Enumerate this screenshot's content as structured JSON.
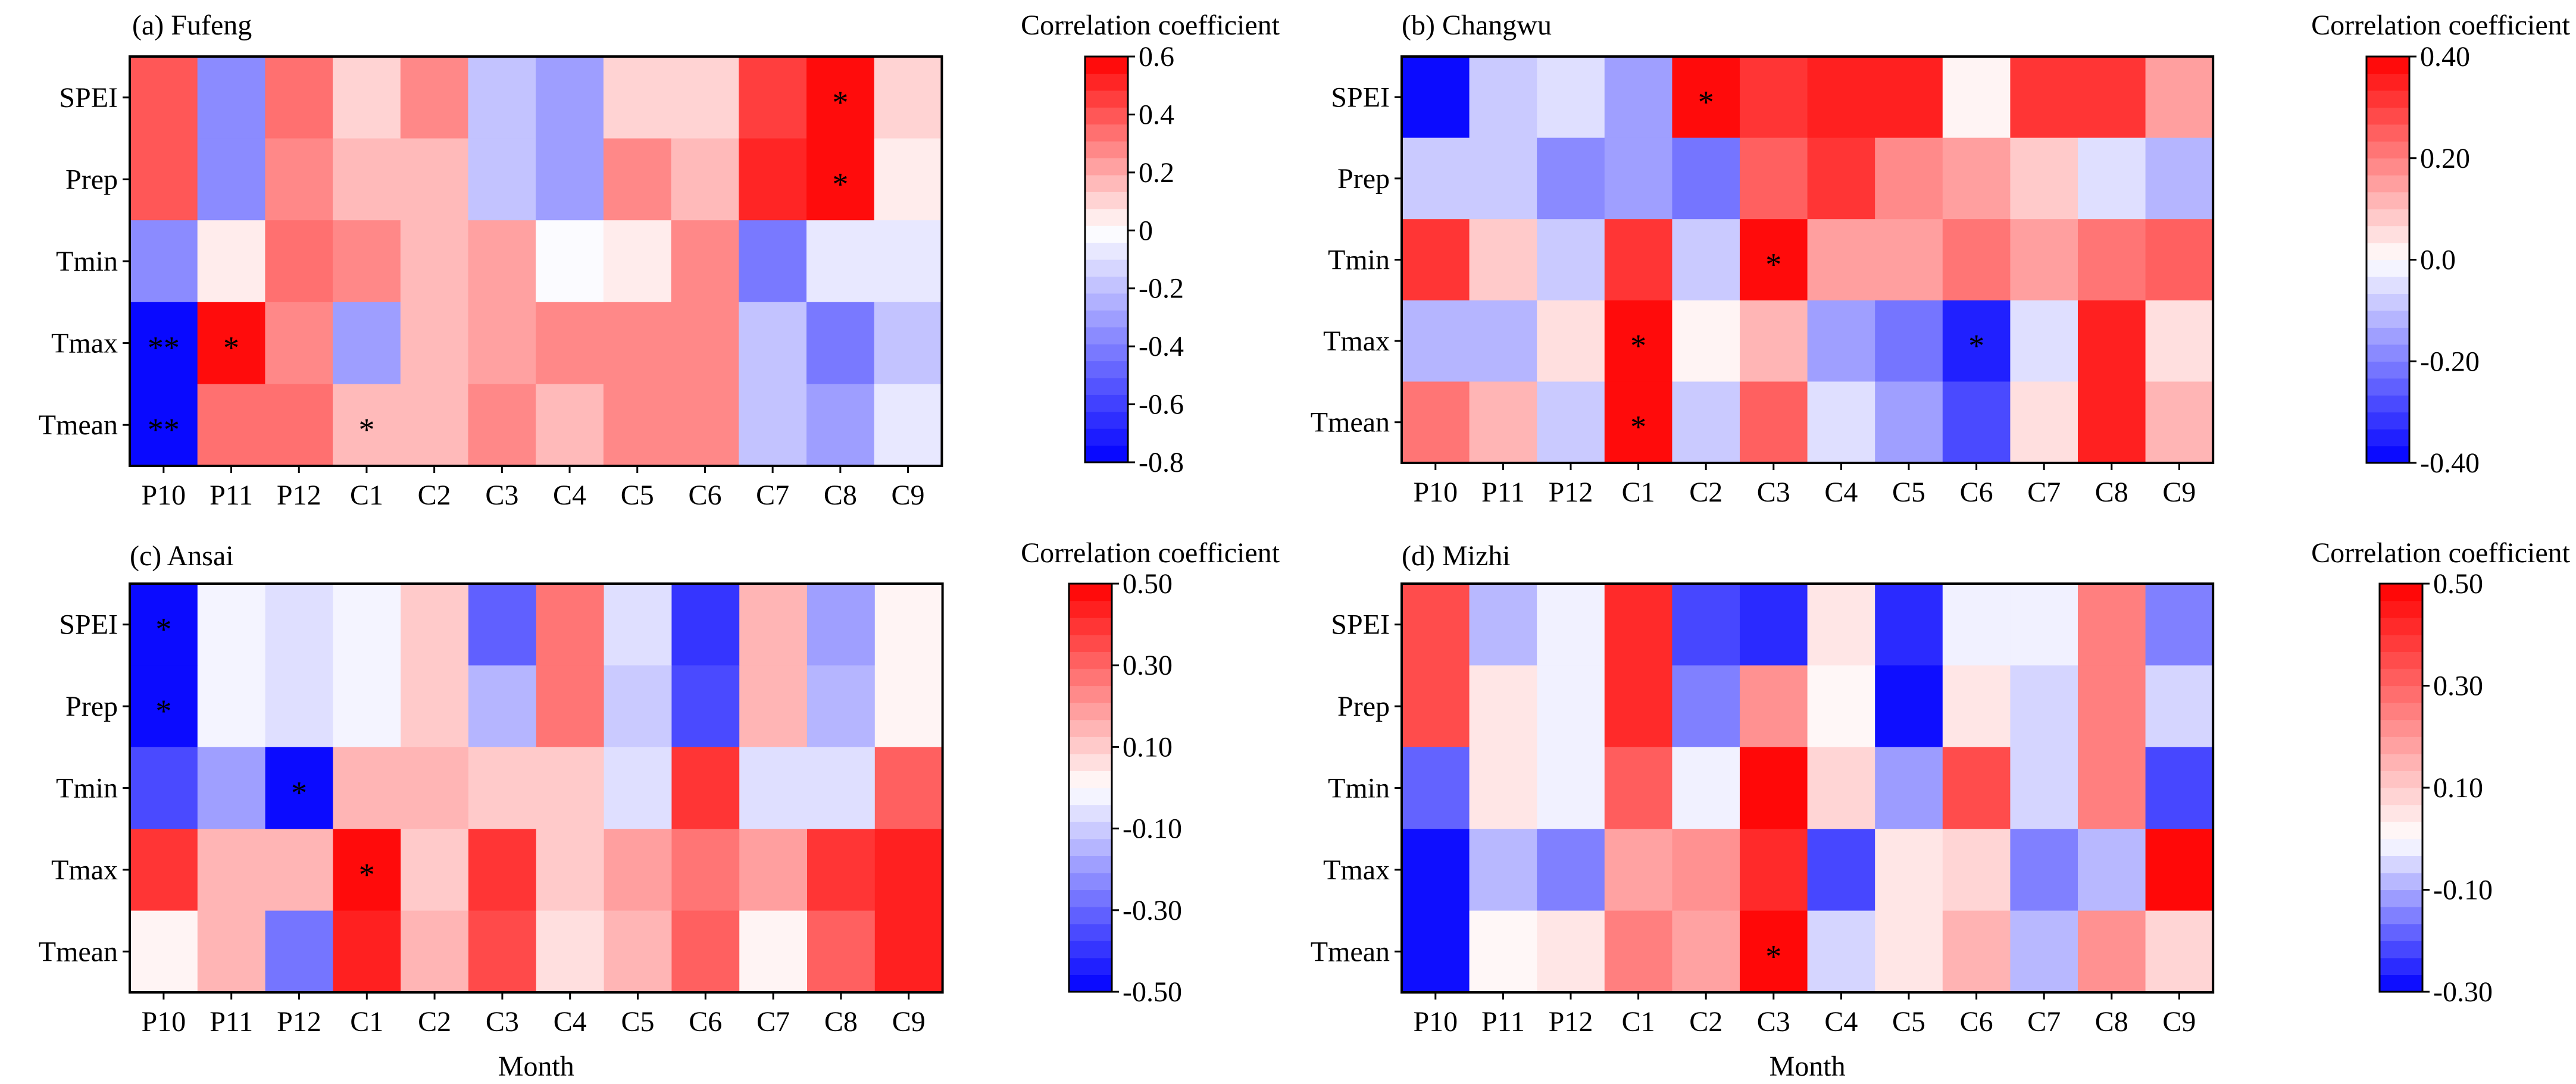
{
  "figure": {
    "x_axis_title": "Month"
  },
  "chart_data": [
    {
      "type": "heatmap",
      "panel": "a",
      "title": "(a) Fufeng",
      "colorbar_label": "Correlation coefficient",
      "xlabel": "",
      "categories": [
        "P10",
        "P11",
        "P12",
        "C1",
        "C2",
        "C3",
        "C4",
        "C5",
        "C6",
        "C7",
        "C8",
        "C9"
      ],
      "rows": [
        "SPEI",
        "Prep",
        "Tmin",
        "Tmax",
        "Tmean"
      ],
      "values": [
        [
          0.4,
          -0.35,
          0.35,
          0.1,
          0.25,
          -0.2,
          -0.3,
          0.1,
          0.1,
          0.45,
          0.55,
          0.1
        ],
        [
          0.4,
          -0.35,
          0.3,
          0.15,
          0.15,
          -0.2,
          -0.3,
          0.25,
          0.15,
          0.5,
          0.55,
          0.05
        ],
        [
          -0.35,
          0.05,
          0.35,
          0.3,
          0.15,
          0.2,
          0.0,
          0.05,
          0.25,
          -0.45,
          -0.05,
          -0.1
        ],
        [
          -0.75,
          0.55,
          0.3,
          -0.3,
          0.15,
          0.2,
          0.25,
          0.25,
          0.3,
          -0.2,
          -0.4,
          -0.2
        ],
        [
          -0.75,
          0.35,
          0.35,
          0.15,
          0.15,
          0.25,
          0.15,
          0.3,
          0.3,
          -0.2,
          -0.3,
          -0.05
        ]
      ],
      "significance": [
        [
          "",
          "",
          "",
          "",
          "",
          "",
          "",
          "",
          "",
          "",
          "*",
          ""
        ],
        [
          "",
          "",
          "",
          "",
          "",
          "",
          "",
          "",
          "",
          "",
          "*",
          ""
        ],
        [
          "",
          "",
          "",
          "",
          "",
          "",
          "",
          "",
          "",
          "",
          "",
          ""
        ],
        [
          "**",
          "*",
          "",
          "",
          "",
          "",
          "",
          "",
          "",
          "",
          "",
          ""
        ],
        [
          "**",
          "",
          "",
          "*",
          "",
          "",
          "",
          "",
          "",
          "",
          "",
          ""
        ]
      ],
      "vmin": -0.8,
      "vmax": 0.6,
      "colorbar_ticks": [
        0.6,
        0.4,
        0.2,
        0,
        -0.2,
        -0.4,
        -0.6,
        -0.8
      ],
      "colorbar_tick_labels": [
        "0.6",
        "0.4",
        "0.2",
        "0",
        "-0.2",
        "-0.4",
        "-0.6",
        "-0.8"
      ]
    },
    {
      "type": "heatmap",
      "panel": "b",
      "title": "(b) Changwu",
      "colorbar_label": "Correlation coefficient",
      "xlabel": "",
      "categories": [
        "P10",
        "P11",
        "P12",
        "C1",
        "C2",
        "C3",
        "C4",
        "C5",
        "C6",
        "C7",
        "C8",
        "C9"
      ],
      "rows": [
        "SPEI",
        "Prep",
        "Tmin",
        "Tmax",
        "Tmean"
      ],
      "values": [
        [
          -0.38,
          -0.08,
          -0.04,
          -0.16,
          0.38,
          0.3,
          0.36,
          0.36,
          0.03,
          0.32,
          0.32,
          0.14
        ],
        [
          -0.08,
          -0.08,
          -0.18,
          -0.14,
          -0.22,
          0.26,
          0.32,
          0.18,
          0.14,
          0.08,
          -0.04,
          -0.12
        ],
        [
          0.32,
          0.08,
          -0.1,
          0.32,
          -0.1,
          0.38,
          0.16,
          0.16,
          0.22,
          0.14,
          0.2,
          0.26
        ],
        [
          -0.12,
          -0.12,
          0.04,
          0.38,
          0.03,
          0.12,
          -0.14,
          -0.22,
          -0.36,
          -0.06,
          0.36,
          0.04
        ],
        [
          0.22,
          0.12,
          -0.1,
          0.38,
          -0.08,
          0.26,
          -0.06,
          -0.14,
          -0.3,
          0.05,
          0.36,
          0.1
        ]
      ],
      "significance": [
        [
          "",
          "",
          "",
          "",
          "*",
          "",
          "",
          "",
          "",
          "",
          "",
          ""
        ],
        [
          "",
          "",
          "",
          "",
          "",
          "",
          "",
          "",
          "",
          "",
          "",
          ""
        ],
        [
          "",
          "",
          "",
          "",
          "",
          "*",
          "",
          "",
          "",
          "",
          "",
          ""
        ],
        [
          "",
          "",
          "",
          "*",
          "",
          "",
          "",
          "",
          "*",
          "",
          "",
          ""
        ],
        [
          "",
          "",
          "",
          "*",
          "",
          "",
          "",
          "",
          "",
          "",
          "",
          ""
        ]
      ],
      "vmin": -0.4,
      "vmax": 0.4,
      "colorbar_ticks": [
        0.4,
        0.2,
        0.0,
        -0.2,
        -0.4
      ],
      "colorbar_tick_labels": [
        "0.40",
        "0.20",
        "0.0",
        "-0.20",
        "-0.40"
      ]
    },
    {
      "type": "heatmap",
      "panel": "c",
      "title": "(c) Ansai",
      "colorbar_label": "Correlation coefficient",
      "xlabel": "Month",
      "categories": [
        "P10",
        "P11",
        "P12",
        "C1",
        "C2",
        "C3",
        "C4",
        "C5",
        "C6",
        "C7",
        "C8",
        "C9"
      ],
      "rows": [
        "SPEI",
        "Prep",
        "Tmin",
        "Tmax",
        "Tmean"
      ],
      "values": [
        [
          -0.48,
          -0.04,
          -0.08,
          -0.02,
          0.12,
          -0.3,
          0.28,
          -0.06,
          -0.38,
          0.16,
          -0.18,
          0.02
        ],
        [
          -0.48,
          -0.04,
          -0.08,
          -0.02,
          0.12,
          -0.14,
          0.28,
          -0.1,
          -0.34,
          0.16,
          -0.14,
          0.02
        ],
        [
          -0.34,
          -0.18,
          -0.48,
          0.16,
          0.16,
          0.12,
          0.12,
          -0.08,
          0.38,
          -0.08,
          -0.06,
          0.3
        ],
        [
          0.38,
          0.14,
          0.16,
          0.48,
          0.12,
          0.4,
          0.12,
          0.2,
          0.28,
          0.2,
          0.38,
          0.44
        ],
        [
          0.02,
          0.16,
          -0.26,
          0.44,
          0.16,
          0.34,
          0.08,
          0.16,
          0.3,
          0.02,
          0.3,
          0.44
        ]
      ],
      "significance": [
        [
          "*",
          "",
          "",
          "",
          "",
          "",
          "",
          "",
          "",
          "",
          "",
          ""
        ],
        [
          "*",
          "",
          "",
          "",
          "",
          "",
          "",
          "",
          "",
          "",
          "",
          ""
        ],
        [
          "",
          "",
          "*",
          "",
          "",
          "",
          "",
          "",
          "",
          "",
          "",
          ""
        ],
        [
          "",
          "",
          "",
          "*",
          "",
          "",
          "",
          "",
          "",
          "",
          "",
          ""
        ],
        [
          "",
          "",
          "",
          "",
          "",
          "",
          "",
          "",
          "",
          "",
          "",
          ""
        ]
      ],
      "vmin": -0.5,
      "vmax": 0.5,
      "colorbar_ticks": [
        0.5,
        0.3,
        0.1,
        -0.1,
        -0.3,
        -0.5
      ],
      "colorbar_tick_labels": [
        "0.50",
        "0.30",
        "0.10",
        "-0.10",
        "-0.30",
        "-0.50"
      ]
    },
    {
      "type": "heatmap",
      "panel": "d",
      "title": "(d) Mizhi",
      "colorbar_label": "Correlation coefficient",
      "xlabel": "Month",
      "categories": [
        "P10",
        "P11",
        "P12",
        "C1",
        "C2",
        "C3",
        "C4",
        "C5",
        "C6",
        "C7",
        "C8",
        "C9"
      ],
      "rows": [
        "SPEI",
        "Prep",
        "Tmin",
        "Tmax",
        "Tmean"
      ],
      "values": [
        [
          0.34,
          -0.08,
          -0.02,
          0.42,
          -0.2,
          -0.26,
          0.06,
          -0.26,
          -0.02,
          -0.02,
          0.24,
          -0.14
        ],
        [
          0.34,
          0.04,
          -0.02,
          0.42,
          -0.14,
          0.22,
          0.02,
          -0.3,
          0.04,
          -0.06,
          0.26,
          -0.06
        ],
        [
          -0.18,
          0.04,
          -0.02,
          0.3,
          -0.02,
          0.5,
          0.08,
          -0.12,
          0.36,
          -0.06,
          0.24,
          -0.22
        ],
        [
          -0.3,
          -0.08,
          -0.14,
          0.18,
          0.2,
          0.42,
          -0.2,
          0.04,
          0.08,
          -0.14,
          -0.08,
          0.48
        ],
        [
          -0.3,
          0.0,
          0.04,
          0.24,
          0.18,
          0.5,
          -0.04,
          0.04,
          0.16,
          -0.08,
          0.2,
          0.08
        ]
      ],
      "significance": [
        [
          "",
          "",
          "",
          "",
          "",
          "",
          "",
          "",
          "",
          "",
          "",
          ""
        ],
        [
          "",
          "",
          "",
          "",
          "",
          "",
          "",
          "",
          "",
          "",
          "",
          ""
        ],
        [
          "",
          "",
          "",
          "",
          "",
          "",
          "",
          "",
          "",
          "",
          "",
          ""
        ],
        [
          "",
          "",
          "",
          "",
          "",
          "",
          "",
          "",
          "",
          "",
          "",
          ""
        ],
        [
          "",
          "",
          "",
          "",
          "",
          "*",
          "",
          "",
          "",
          "",
          "",
          ""
        ]
      ],
      "vmin": -0.3,
      "vmax": 0.5,
      "colorbar_ticks": [
        0.5,
        0.3,
        0.1,
        -0.1,
        -0.3
      ],
      "colorbar_tick_labels": [
        "0.50",
        "0.30",
        "0.10",
        "-0.10",
        "-0.30"
      ]
    }
  ]
}
